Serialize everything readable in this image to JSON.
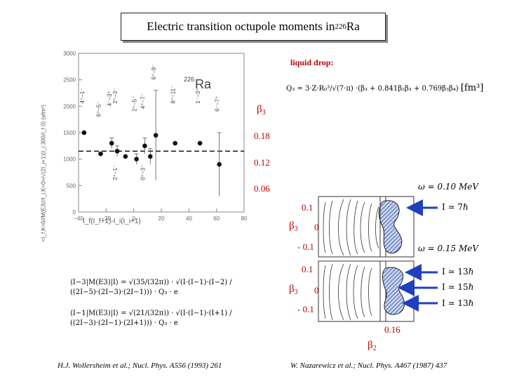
{
  "title": {
    "main": "Electric transition octupole moments in ",
    "mass": "226",
    "element": "Ra"
  },
  "plot": {
    "nucleus_label_mass": "226",
    "nucleus_label_symbol": "Ra",
    "ylabel": "<I_f,K=0//M(E3)//I_i,K=0>/√(2I_i+1)(I_i 300/I_f 0) (efm³)",
    "xlabel": "I_f(I_f+1)-I_i(I_i+1)",
    "xticks": [
      "−40",
      "−20",
      "0",
      "20",
      "40",
      "60",
      "80"
    ],
    "yticks": [
      "0",
      "500",
      "1000",
      "1500",
      "2000",
      "2500",
      "3000"
    ],
    "transitions": [
      "4⁺−1⁻",
      "6⁺−5⁻",
      "4⁻−3⁺",
      "2⁺−3⁻",
      "2⁺−5⁻",
      "4⁺−7⁻",
      "6⁺−9⁻",
      "8⁺−11⁻",
      "1⁻−3⁺",
      "6⁻−7⁺",
      "2⁺−1⁻",
      "0⁺−3⁻"
    ]
  },
  "chart_data": {
    "type": "scatter",
    "xlim": [
      -40,
      80
    ],
    "ylim": [
      0,
      3000
    ],
    "points": [
      {
        "x": -36,
        "y": 1500,
        "err": 0
      },
      {
        "x": -24,
        "y": 1100,
        "err": 0
      },
      {
        "x": -16,
        "y": 1300,
        "err": 100
      },
      {
        "x": -12,
        "y": 1150,
        "err": 100
      },
      {
        "x": -6,
        "y": 1050,
        "err": 0
      },
      {
        "x": 2,
        "y": 1000,
        "err": 100
      },
      {
        "x": 8,
        "y": 1250,
        "err": 150
      },
      {
        "x": 12,
        "y": 1050,
        "err": 150
      },
      {
        "x": 16,
        "y": 1450,
        "err": 850
      },
      {
        "x": 30,
        "y": 1300,
        "err": 0
      },
      {
        "x": 48,
        "y": 1300,
        "err": 0
      },
      {
        "x": 62,
        "y": 900,
        "err": 600
      }
    ],
    "reference_line_y": 1150
  },
  "liquid_drop": {
    "label": "liquid drop:",
    "formula": "Q₃ = 3·Z·R₀³/√(7·π) ·(β₃ + 0.841β₂β₃ + 0.769β₃β₄)",
    "unit": "[fm³]"
  },
  "beta3_scale": {
    "symbol": "β",
    "sub": "3",
    "ticks": [
      "0.18",
      "0.12",
      "0.06"
    ]
  },
  "contour": {
    "panel_top": {
      "omega": "ω = 0.10 MeV",
      "ylabels": [
        "0.1",
        "0",
        "- 0.1"
      ],
      "arrow": "I ≃ 7ℏ"
    },
    "panel_bottom": {
      "omega": "ω = 0.15 MeV",
      "ylabels": [
        "0.1",
        "0",
        "- 0.1"
      ],
      "arrows": [
        "I ≃ 13ℏ",
        "I ≃ 15ℏ",
        "I ≃ 13ℏ"
      ]
    },
    "beta_y": {
      "symbol": "β",
      "sub": "3"
    },
    "beta_x": {
      "symbol": "β",
      "sub": "2",
      "tick": "0.16"
    }
  },
  "formulas": {
    "f1": "⟨I−3|M(E3)|I⟩ = √(35/(32π)) · √(I·(I−1)·(I−2) / ((2I−5)·(2I−3)·(2I−1))) · Q₃ · e",
    "f2": "⟨I−1|M(E3)|I⟩ = √(21/(32π)) · √(I·(I−1)·(I+1) / ((2I−3)·(2I−1)·(2I+1))) · Q₃ · e"
  },
  "citations": {
    "left": "H.J. Wollersheim et al.; Nucl. Phys. A556 (1993) 261",
    "right": "W. Nazarewicz et al.; Nucl. Phys. A467 (1987) 437"
  },
  "colors": {
    "accent": "#c00000",
    "arrow": "#1f3fbf",
    "hatch": "#2a4a9a"
  }
}
